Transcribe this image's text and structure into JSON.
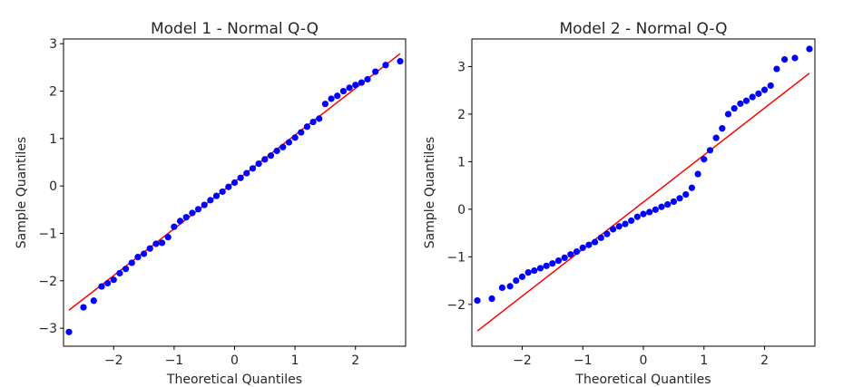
{
  "colors": {
    "points": "#0000ff",
    "line": "#ff0000",
    "axis": "#000000"
  },
  "chart_data": [
    {
      "type": "scatter",
      "title": "Model 1 - Normal Q-Q",
      "xlabel": "Theoretical Quantiles",
      "ylabel": "Sample Quantiles",
      "xlim": [
        -2.83,
        2.83
      ],
      "ylim": [
        -3.38,
        3.1
      ],
      "xticks": [
        -2,
        -1,
        0,
        1,
        2
      ],
      "yticks": [
        -3,
        -2,
        -1,
        0,
        1,
        2,
        3
      ],
      "xtick_labels": [
        "−2",
        "−1",
        "0",
        "1",
        "2"
      ],
      "ytick_labels": [
        "−3",
        "−2",
        "−1",
        "0",
        "1",
        "2",
        "3"
      ],
      "reference_line": {
        "x": [
          -2.74,
          2.74
        ],
        "y": [
          -2.62,
          2.79
        ]
      },
      "series": [
        {
          "name": "sample quantiles",
          "x": [
            -2.74,
            -2.5,
            -2.33,
            -2.2,
            -2.1,
            -2.0,
            -1.9,
            -1.8,
            -1.7,
            -1.6,
            -1.5,
            -1.4,
            -1.3,
            -1.2,
            -1.1,
            -1.0,
            -0.9,
            -0.8,
            -0.7,
            -0.6,
            -0.5,
            -0.4,
            -0.3,
            -0.2,
            -0.1,
            0.0,
            0.1,
            0.2,
            0.3,
            0.4,
            0.5,
            0.6,
            0.7,
            0.8,
            0.9,
            1.0,
            1.1,
            1.2,
            1.3,
            1.4,
            1.5,
            1.6,
            1.7,
            1.8,
            1.9,
            2.0,
            2.1,
            2.2,
            2.33,
            2.5,
            2.74
          ],
          "y": [
            -3.08,
            -2.56,
            -2.42,
            -2.12,
            -2.05,
            -1.98,
            -1.84,
            -1.75,
            -1.62,
            -1.5,
            -1.43,
            -1.32,
            -1.22,
            -1.2,
            -1.08,
            -0.86,
            -0.74,
            -0.66,
            -0.57,
            -0.49,
            -0.4,
            -0.3,
            -0.21,
            -0.12,
            -0.02,
            0.07,
            0.17,
            0.27,
            0.37,
            0.47,
            0.56,
            0.64,
            0.74,
            0.82,
            0.92,
            1.02,
            1.13,
            1.25,
            1.35,
            1.42,
            1.73,
            1.84,
            1.9,
            2.0,
            2.07,
            2.13,
            2.18,
            2.25,
            2.41,
            2.55,
            2.63
          ]
        }
      ]
    },
    {
      "type": "scatter",
      "title": "Model 2 - Normal Q-Q",
      "xlabel": "Theoretical Quantiles",
      "ylabel": "Sample Quantiles",
      "xlim": [
        -2.83,
        2.83
      ],
      "ylim": [
        -2.88,
        3.58
      ],
      "xticks": [
        -2,
        -1,
        0,
        1,
        2
      ],
      "yticks": [
        -2,
        -1,
        0,
        1,
        2,
        3
      ],
      "xtick_labels": [
        "−2",
        "−1",
        "0",
        "1",
        "2"
      ],
      "ytick_labels": [
        "−2",
        "−1",
        "0",
        "1",
        "2",
        "3"
      ],
      "reference_line": {
        "x": [
          -2.74,
          2.74
        ],
        "y": [
          -2.56,
          2.86
        ]
      },
      "series": [
        {
          "name": "sample quantiles",
          "x": [
            -2.74,
            -2.5,
            -2.33,
            -2.2,
            -2.1,
            -2.0,
            -1.9,
            -1.8,
            -1.7,
            -1.6,
            -1.5,
            -1.4,
            -1.3,
            -1.2,
            -1.1,
            -1.0,
            -0.9,
            -0.8,
            -0.7,
            -0.6,
            -0.5,
            -0.4,
            -0.3,
            -0.2,
            -0.1,
            0.0,
            0.1,
            0.2,
            0.3,
            0.4,
            0.5,
            0.6,
            0.7,
            0.8,
            0.9,
            1.0,
            1.1,
            1.2,
            1.3,
            1.4,
            1.5,
            1.6,
            1.7,
            1.8,
            1.9,
            2.0,
            2.1,
            2.2,
            2.33,
            2.5,
            2.74
          ],
          "y": [
            -1.92,
            -1.88,
            -1.65,
            -1.62,
            -1.5,
            -1.42,
            -1.33,
            -1.29,
            -1.24,
            -1.19,
            -1.14,
            -1.08,
            -1.02,
            -0.95,
            -0.89,
            -0.81,
            -0.75,
            -0.69,
            -0.6,
            -0.52,
            -0.42,
            -0.36,
            -0.31,
            -0.24,
            -0.16,
            -0.1,
            -0.06,
            -0.01,
            0.05,
            0.1,
            0.16,
            0.23,
            0.31,
            0.45,
            0.74,
            1.05,
            1.24,
            1.5,
            1.7,
            2.0,
            2.12,
            2.22,
            2.28,
            2.36,
            2.43,
            2.51,
            2.6,
            2.95,
            3.15,
            3.18,
            3.37
          ]
        }
      ]
    }
  ]
}
